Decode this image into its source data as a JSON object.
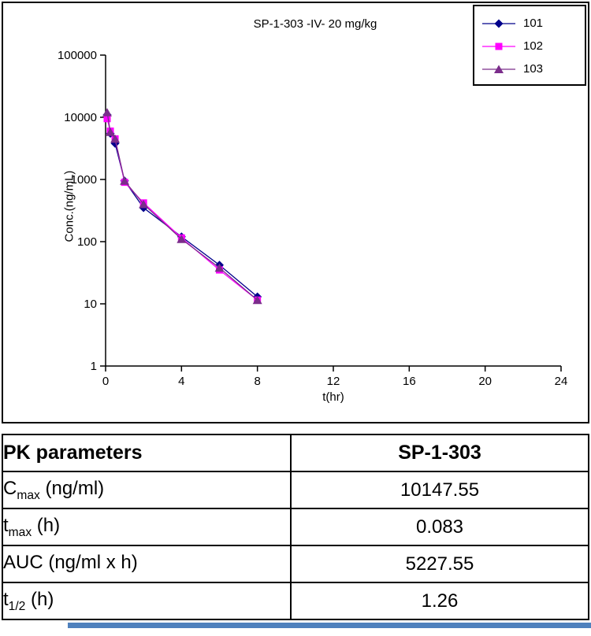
{
  "chart_data": {
    "type": "line",
    "title": "SP-1-303 -IV- 20 mg/kg",
    "xlabel": "t(hr)",
    "ylabel": "Conc.(ng/mL)",
    "yscale": "log",
    "grid": false,
    "legend_position": "top-right",
    "xlim": [
      0,
      24
    ],
    "ylim": [
      1,
      100000
    ],
    "xticks": [
      0,
      4,
      8,
      12,
      16,
      20,
      24
    ],
    "yticks": [
      1,
      10,
      100,
      1000,
      10000,
      100000
    ],
    "x": [
      0.083,
      0.25,
      0.5,
      1,
      2,
      4,
      6,
      8
    ],
    "series": [
      {
        "name": "101",
        "color": "#00008B",
        "marker": "diamond",
        "values": [
          11000,
          5500,
          3800,
          950,
          350,
          120,
          42,
          13
        ]
      },
      {
        "name": "102",
        "color": "#FF00FF",
        "marker": "square",
        "values": [
          9500,
          6000,
          4500,
          900,
          420,
          115,
          35,
          11.5
        ]
      },
      {
        "name": "103",
        "color": "#7B2D8B",
        "marker": "triangle",
        "values": [
          12000,
          5800,
          4500,
          950,
          400,
          110,
          38,
          11.5
        ]
      }
    ]
  },
  "table": {
    "header": {
      "param": "PK parameters",
      "value": "SP-1-303"
    },
    "rows": [
      {
        "base": "C",
        "sub": "max",
        "rest": " (ng/ml)",
        "value": "10147.55"
      },
      {
        "base": "t",
        "sub": "max",
        "rest": " (h)",
        "value": "0.083"
      },
      {
        "base": "AUC (ng/ml x h)",
        "sub": "",
        "rest": "",
        "value": "5227.55"
      },
      {
        "base": "t",
        "sub": "1/2",
        "rest": " (h)",
        "value": "1.26"
      }
    ]
  },
  "colors": {
    "accent_bar": "#4f81bd"
  }
}
